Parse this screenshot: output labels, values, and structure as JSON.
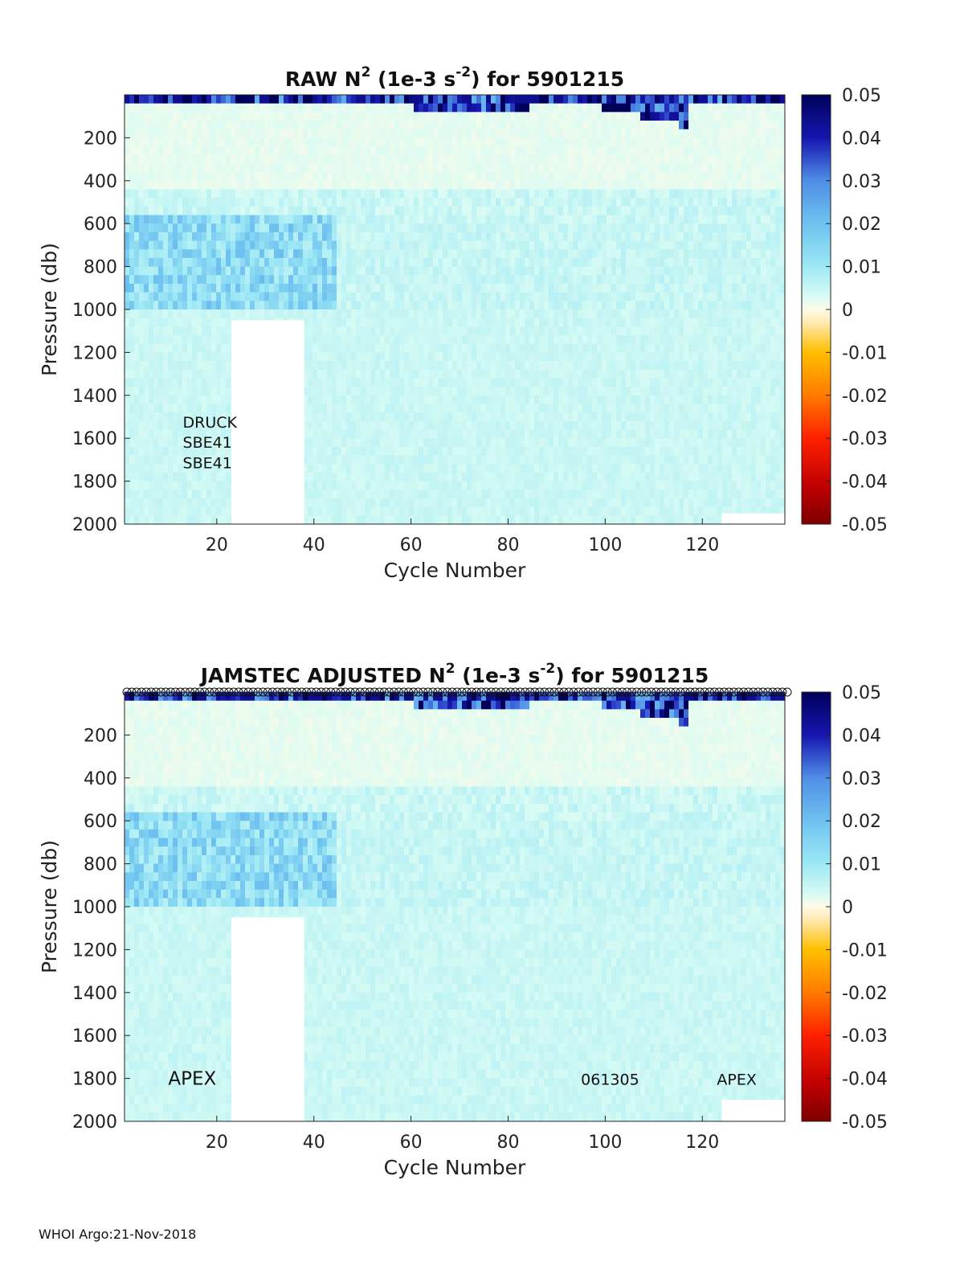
{
  "footer": "WHOI Argo:21-Nov-2018",
  "colors": {
    "colormap": [
      "#7f0000",
      "#c00000",
      "#ff2000",
      "#ff7a00",
      "#ffbf00",
      "#ffe9b0",
      "#fffbe8",
      "#d7fbf4",
      "#9de8f5",
      "#6fc2f0",
      "#4f8ee6",
      "#3554d2",
      "#1616b0",
      "#00005a"
    ],
    "background": "#ffffff"
  },
  "chart_data": [
    {
      "type": "heatmap",
      "title_prefix": "RAW N",
      "title_sup1": "2",
      "title_mid": " (1e-3 s",
      "title_sup2": "-2",
      "title_suffix": ") for 5901215",
      "xlabel": "Cycle Number",
      "ylabel": "Pressure (db)",
      "xlim": [
        1,
        137
      ],
      "ylim": [
        0,
        2000
      ],
      "y_reversed": true,
      "xticks": [
        20,
        40,
        60,
        80,
        100,
        120
      ],
      "yticks": [
        200,
        400,
        600,
        800,
        1000,
        1200,
        1400,
        1600,
        1800,
        2000
      ],
      "colorbar_ticks": [
        0.05,
        0.04,
        0.03,
        0.02,
        0.01,
        0,
        -0.01,
        -0.02,
        -0.03,
        -0.04,
        -0.05
      ],
      "clim": [
        -0.05,
        0.05
      ],
      "annotations": [
        {
          "text": "DRUCK",
          "x": 13,
          "y": 1520
        },
        {
          "text": "SBE41",
          "x": 13,
          "y": 1615
        },
        {
          "text": "SBE41",
          "x": 13,
          "y": 1710
        }
      ],
      "missing_regions": [
        {
          "x0": 23,
          "x1": 38,
          "y0": 1050,
          "y1": 2000
        },
        {
          "x0": 124,
          "x1": 137,
          "y0": 1950,
          "y1": 2000
        }
      ],
      "markers_top": false
    },
    {
      "type": "heatmap",
      "title_prefix": "JAMSTEC  ADJUSTED N",
      "title_sup1": "2",
      "title_mid": " (1e-3 s",
      "title_sup2": "-2",
      "title_suffix": ") for 5901215",
      "xlabel": "Cycle Number",
      "ylabel": "Pressure (db)",
      "xlim": [
        1,
        137
      ],
      "ylim": [
        0,
        2000
      ],
      "y_reversed": true,
      "xticks": [
        20,
        40,
        60,
        80,
        100,
        120
      ],
      "yticks": [
        200,
        400,
        600,
        800,
        1000,
        1200,
        1400,
        1600,
        1800,
        2000
      ],
      "colorbar_ticks": [
        0.05,
        0.04,
        0.03,
        0.02,
        0.01,
        0,
        -0.01,
        -0.02,
        -0.03,
        -0.04,
        -0.05
      ],
      "clim": [
        -0.05,
        0.05
      ],
      "annotations": [
        {
          "text": "APEX",
          "x": 10,
          "y": 1800,
          "large": true
        },
        {
          "text": "061305",
          "x": 95,
          "y": 1800
        },
        {
          "text": "APEX",
          "x": 123,
          "y": 1800
        }
      ],
      "missing_regions": [
        {
          "x0": 23,
          "x1": 38,
          "y0": 1050,
          "y1": 2000
        },
        {
          "x0": 124,
          "x1": 137,
          "y0": 1900,
          "y1": 2000
        }
      ],
      "markers_top": true
    }
  ]
}
